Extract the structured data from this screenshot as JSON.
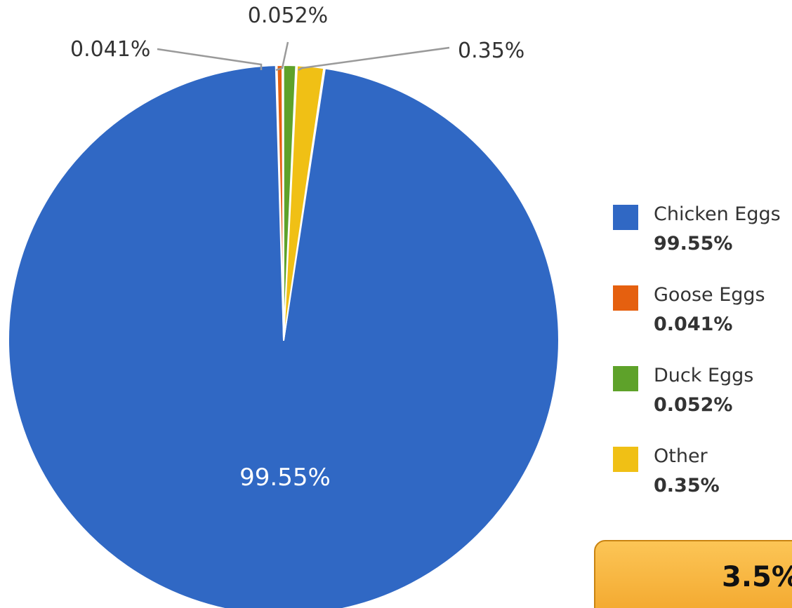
{
  "chart_data": {
    "type": "pie",
    "slices": [
      {
        "name": "Chicken Eggs",
        "value": 99.55,
        "label": "99.55%",
        "color": "#3068c4"
      },
      {
        "name": "Goose Eggs",
        "value": 0.041,
        "label": "0.041%",
        "color": "#e5600f"
      },
      {
        "name": "Duck Eggs",
        "value": 0.052,
        "label": "0.052%",
        "color": "#5ea22a"
      },
      {
        "name": "Other",
        "value": 0.35,
        "label": "0.35%",
        "color": "#f0c015"
      }
    ],
    "legend_placement": "right"
  },
  "badge": {
    "text": "3.5%",
    "color": "#f6b23c"
  }
}
